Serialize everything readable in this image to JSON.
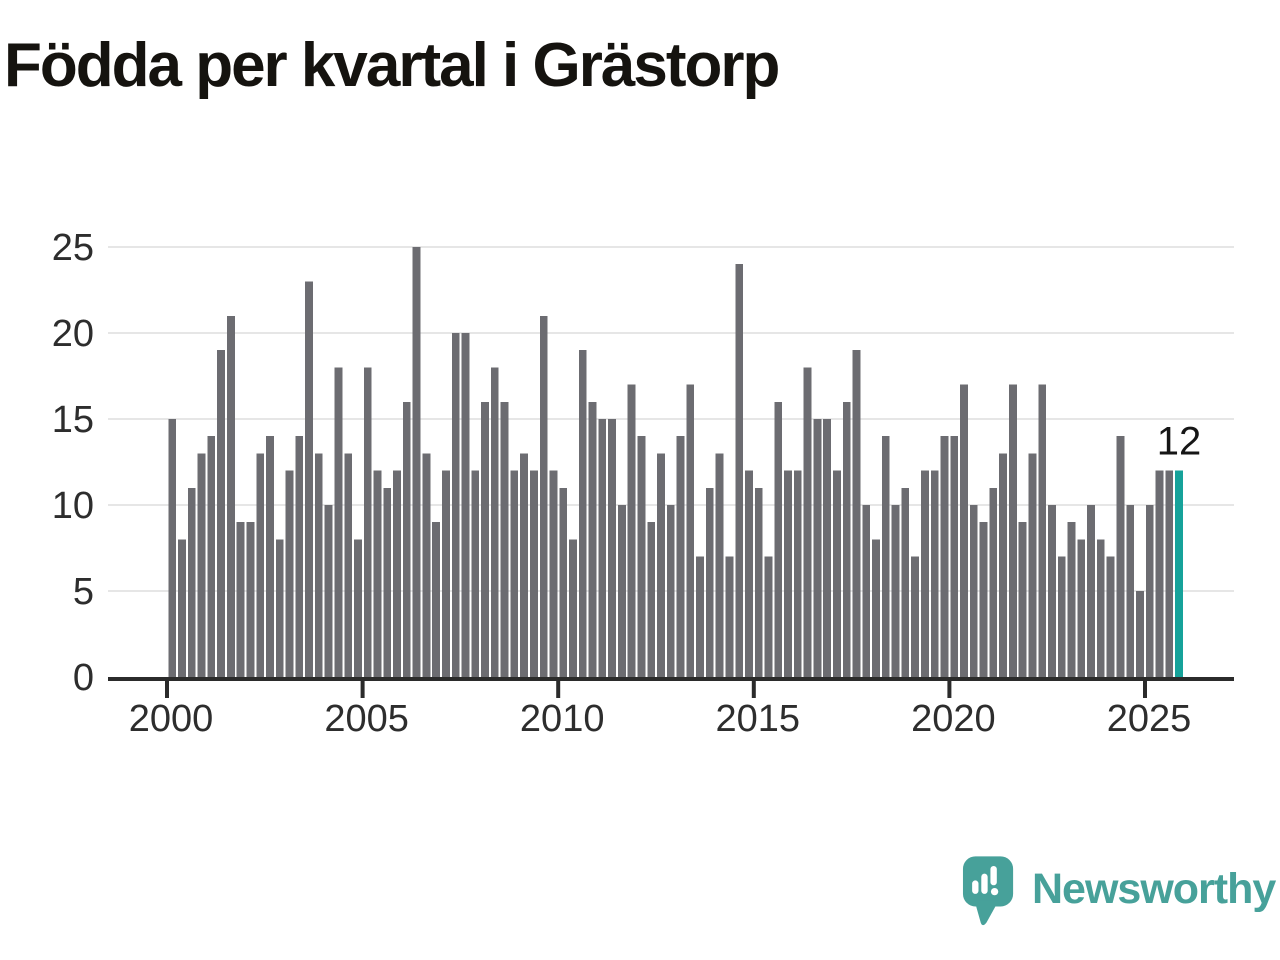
{
  "title": "Födda per kvartal i Grästorp",
  "chart_data": {
    "type": "bar",
    "title": "Födda per kvartal i Grästorp",
    "x_start": "2000 Q1",
    "x_end": "2025 Q4",
    "quarters_per_year": 4,
    "values": [
      15,
      8,
      11,
      13,
      14,
      19,
      21,
      9,
      9,
      13,
      14,
      8,
      12,
      14,
      23,
      13,
      10,
      18,
      13,
      8,
      18,
      12,
      11,
      12,
      16,
      25,
      13,
      9,
      12,
      20,
      20,
      12,
      16,
      18,
      16,
      12,
      13,
      12,
      21,
      12,
      11,
      8,
      19,
      16,
      15,
      15,
      10,
      17,
      14,
      9,
      13,
      10,
      14,
      17,
      7,
      11,
      13,
      7,
      24,
      12,
      11,
      7,
      16,
      12,
      12,
      18,
      15,
      15,
      12,
      16,
      19,
      10,
      8,
      14,
      10,
      11,
      7,
      12,
      12,
      14,
      14,
      17,
      10,
      9,
      11,
      13,
      17,
      9,
      13,
      17,
      10,
      7,
      9,
      8,
      10,
      8,
      7,
      14,
      10,
      5,
      10,
      12,
      12,
      12
    ],
    "highlight": {
      "index": 103,
      "value": 12,
      "label": "12"
    },
    "y_ticks": [
      0,
      5,
      10,
      15,
      20,
      25
    ],
    "x_tick_labels": [
      "2000",
      "2005",
      "2010",
      "2015",
      "2020",
      "2025"
    ],
    "ylim": [
      0,
      25
    ],
    "grid": true,
    "legend": "none"
  },
  "colors": {
    "bar": "#6c6c71",
    "highlight": "#16a29a",
    "grid": "#e6e6e6",
    "axis": "#2b2b2b",
    "tick_label": "#2d2d2d",
    "annotation": "#161616",
    "brand": "#47a19a"
  },
  "branding": {
    "name": "Newsworthy"
  }
}
